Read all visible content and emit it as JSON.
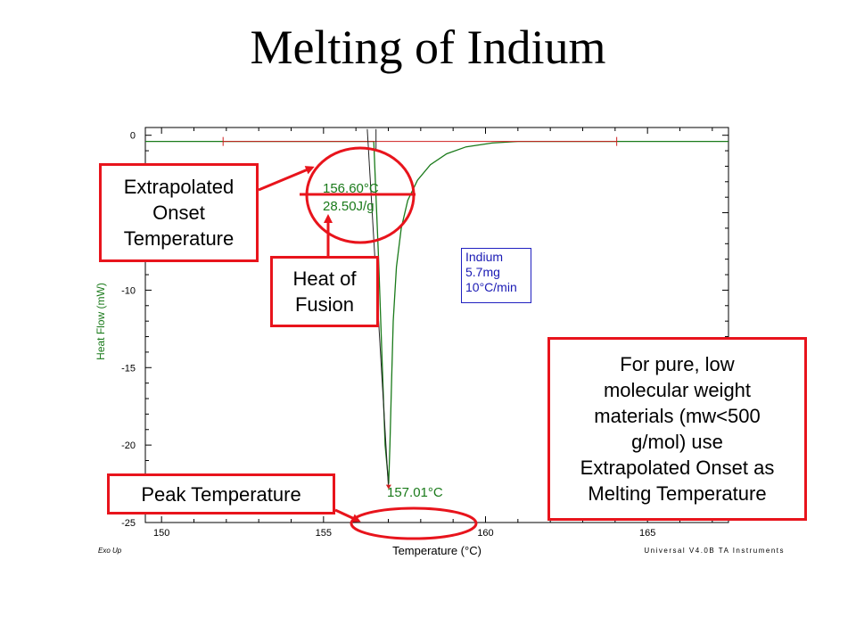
{
  "slide": {
    "title": "Melting of Indium"
  },
  "callouts": {
    "onset_label": [
      "Extrapolated",
      "Onset",
      "Temperature"
    ],
    "heat_label": [
      "Heat of",
      "Fusion"
    ],
    "peak_label": "Peak Temperature",
    "note_label": [
      "For pure, low",
      "molecular weight",
      "materials (mw<500",
      "g/mol) use",
      "Extrapolated Onset as",
      "Melting Temperature"
    ]
  },
  "legend": {
    "lines": [
      "Indium",
      "5.7mg",
      "10°C/min"
    ]
  },
  "colors": {
    "trace": "#1a7a1a",
    "callout": "#e8141c",
    "baseline": "#d02020",
    "legend": "#1a1ab4",
    "axis": "#000000"
  },
  "chart_data": {
    "type": "line",
    "xlabel": "Temperature (°C)",
    "ylabel": "Heat Flow (mW)",
    "xlim": [
      149.5,
      167.5
    ],
    "ylim": [
      -25,
      0.5
    ],
    "xticks": [
      150,
      155,
      160,
      165
    ],
    "yticks": [
      0,
      -5,
      -10,
      -15,
      -20,
      -25
    ],
    "corner_left": "Exo Up",
    "corner_right": "Universal V4.0B TA Instruments",
    "series": [
      {
        "x": [
          149.5,
          156.4,
          156.55,
          156.6,
          156.7,
          156.8,
          156.9,
          157.01,
          157.05,
          157.1,
          157.15,
          157.25,
          157.4,
          157.6,
          157.9,
          158.3,
          158.8,
          159.4,
          160.2,
          161.0,
          164.0,
          167.5
        ],
        "values": [
          -0.4,
          -0.4,
          -0.4,
          -3,
          -8,
          -14,
          -20,
          -22.5,
          -20,
          -16,
          -12,
          -8.5,
          -6,
          -4.2,
          -2.9,
          -1.9,
          -1.2,
          -0.75,
          -0.5,
          -0.4,
          -0.4,
          -0.4
        ]
      }
    ],
    "baseline": {
      "x": [
        151.9,
        164.05
      ],
      "y": -0.4
    },
    "annotations": {
      "onset": "156.60°C",
      "enthalpy": "28.50J/g",
      "peak": "157.01°C"
    }
  }
}
